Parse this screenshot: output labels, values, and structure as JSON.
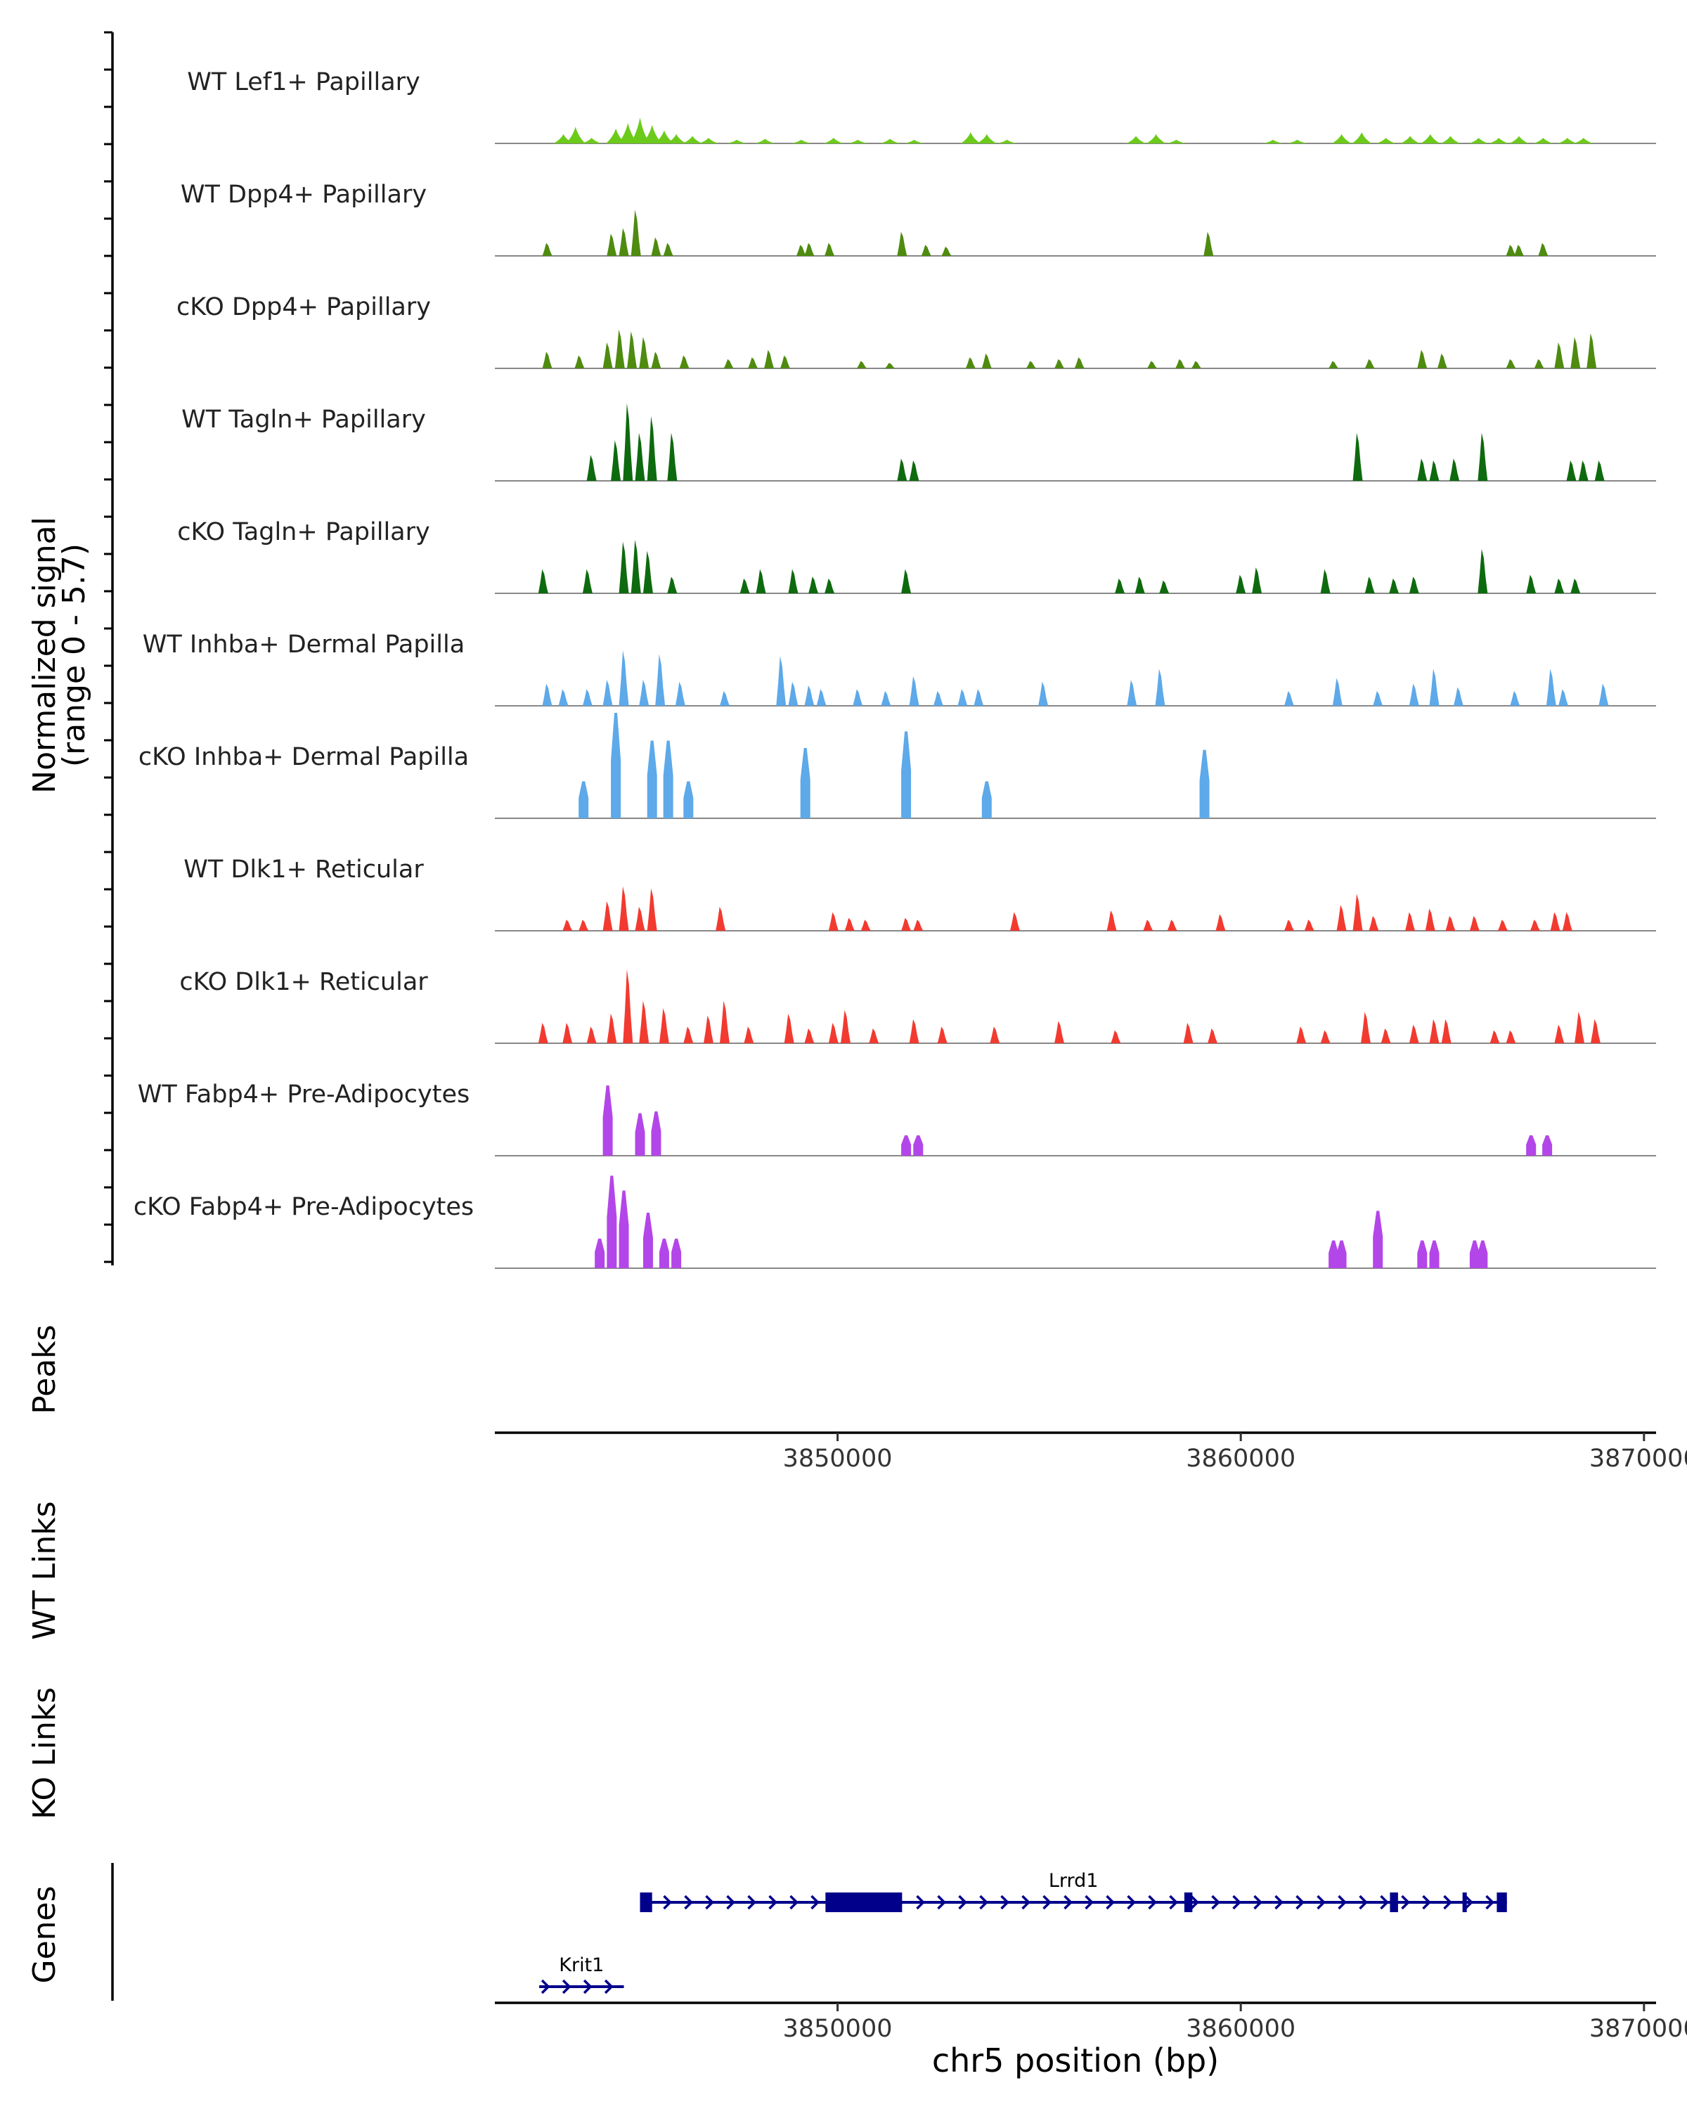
{
  "chart_data": {
    "type": "area",
    "title": "",
    "xlabel": "chr5 position (bp)",
    "xlim": [
      3841500,
      3870300
    ],
    "x_ticks": [
      3850000,
      3860000,
      3870000
    ],
    "x_tick_labels": [
      "3850000",
      "3860000",
      "3870000"
    ],
    "y_axis": {
      "label_line1": "Normalized signal",
      "label_line2": "(range 0 - 5.7)",
      "range": [
        0,
        5.7
      ]
    },
    "panel_labels": {
      "peaks": "Peaks",
      "wt_links": "WT Links",
      "ko_links": "KO Links",
      "genes": "Genes"
    },
    "series": [
      {
        "name": "WT Lef1+ Papillary",
        "color": "#6CCB1A",
        "style": "smooth",
        "peaks": [
          [
            3843200,
            0.5
          ],
          [
            3843500,
            0.9
          ],
          [
            3843900,
            0.3
          ],
          [
            3844500,
            0.8
          ],
          [
            3844800,
            1.1
          ],
          [
            3845100,
            1.4
          ],
          [
            3845400,
            1.0
          ],
          [
            3845700,
            0.7
          ],
          [
            3846000,
            0.5
          ],
          [
            3846400,
            0.4
          ],
          [
            3846800,
            0.3
          ],
          [
            3847500,
            0.2
          ],
          [
            3848200,
            0.25
          ],
          [
            3849100,
            0.2
          ],
          [
            3849900,
            0.3
          ],
          [
            3850500,
            0.2
          ],
          [
            3851300,
            0.25
          ],
          [
            3851900,
            0.2
          ],
          [
            3853300,
            0.6
          ],
          [
            3853700,
            0.5
          ],
          [
            3854200,
            0.2
          ],
          [
            3857400,
            0.4
          ],
          [
            3857900,
            0.5
          ],
          [
            3858400,
            0.2
          ],
          [
            3860800,
            0.2
          ],
          [
            3861400,
            0.2
          ],
          [
            3862500,
            0.5
          ],
          [
            3863000,
            0.6
          ],
          [
            3863600,
            0.3
          ],
          [
            3864200,
            0.4
          ],
          [
            3864700,
            0.5
          ],
          [
            3865200,
            0.4
          ],
          [
            3865900,
            0.3
          ],
          [
            3866400,
            0.3
          ],
          [
            3866900,
            0.4
          ],
          [
            3867500,
            0.3
          ],
          [
            3868100,
            0.3
          ],
          [
            3868500,
            0.3
          ]
        ]
      },
      {
        "name": "WT Dpp4+ Papillary",
        "color": "#4E8B0F",
        "style": "spiky",
        "peaks": [
          [
            3842800,
            0.7
          ],
          [
            3844400,
            1.2
          ],
          [
            3844700,
            1.5
          ],
          [
            3845000,
            2.5
          ],
          [
            3845500,
            1.0
          ],
          [
            3845800,
            0.7
          ],
          [
            3849100,
            0.6
          ],
          [
            3849300,
            0.7
          ],
          [
            3849800,
            0.7
          ],
          [
            3851600,
            1.3
          ],
          [
            3852200,
            0.6
          ],
          [
            3852700,
            0.5
          ],
          [
            3859200,
            1.3
          ],
          [
            3866700,
            0.6
          ],
          [
            3866900,
            0.6
          ],
          [
            3867500,
            0.7
          ]
        ]
      },
      {
        "name": "cKO Dpp4+ Papillary",
        "color": "#4E8B0F",
        "style": "spiky",
        "peaks": [
          [
            3842800,
            0.9
          ],
          [
            3843600,
            0.7
          ],
          [
            3844300,
            1.4
          ],
          [
            3844600,
            2.1
          ],
          [
            3844900,
            2.0
          ],
          [
            3845200,
            1.7
          ],
          [
            3845500,
            0.9
          ],
          [
            3846200,
            0.7
          ],
          [
            3847300,
            0.5
          ],
          [
            3847900,
            0.6
          ],
          [
            3848300,
            1.0
          ],
          [
            3848700,
            0.7
          ],
          [
            3850600,
            0.4
          ],
          [
            3851300,
            0.3
          ],
          [
            3853300,
            0.6
          ],
          [
            3853700,
            0.8
          ],
          [
            3854800,
            0.4
          ],
          [
            3855500,
            0.5
          ],
          [
            3856000,
            0.6
          ],
          [
            3857800,
            0.4
          ],
          [
            3858500,
            0.5
          ],
          [
            3858900,
            0.4
          ],
          [
            3862300,
            0.4
          ],
          [
            3863200,
            0.5
          ],
          [
            3864500,
            1.0
          ],
          [
            3865000,
            0.8
          ],
          [
            3866700,
            0.5
          ],
          [
            3867400,
            0.5
          ],
          [
            3867900,
            1.4
          ],
          [
            3868300,
            1.7
          ],
          [
            3868700,
            1.9
          ]
        ]
      },
      {
        "name": "WT Tagln+ Papillary",
        "color": "#0E6A0E",
        "style": "spiky",
        "peaks": [
          [
            3843900,
            1.4
          ],
          [
            3844500,
            2.2
          ],
          [
            3844800,
            4.2
          ],
          [
            3845100,
            2.6
          ],
          [
            3845400,
            3.5
          ],
          [
            3845900,
            2.6
          ],
          [
            3851600,
            1.2
          ],
          [
            3851900,
            1.1
          ],
          [
            3862900,
            2.6
          ],
          [
            3864500,
            1.2
          ],
          [
            3864800,
            1.1
          ],
          [
            3865300,
            1.2
          ],
          [
            3866000,
            2.6
          ],
          [
            3868200,
            1.1
          ],
          [
            3868500,
            1.1
          ],
          [
            3868900,
            1.1
          ]
        ]
      },
      {
        "name": "cKO Tagln+ Papillary",
        "color": "#0E6A0E",
        "style": "spiky",
        "peaks": [
          [
            3842700,
            1.3
          ],
          [
            3843800,
            1.3
          ],
          [
            3844700,
            2.8
          ],
          [
            3845000,
            2.9
          ],
          [
            3845300,
            2.3
          ],
          [
            3845900,
            0.9
          ],
          [
            3847700,
            0.8
          ],
          [
            3848100,
            1.3
          ],
          [
            3848900,
            1.3
          ],
          [
            3849400,
            0.9
          ],
          [
            3849800,
            0.8
          ],
          [
            3851700,
            1.3
          ],
          [
            3857000,
            0.8
          ],
          [
            3857500,
            0.9
          ],
          [
            3858100,
            0.7
          ],
          [
            3860000,
            1.0
          ],
          [
            3860400,
            1.4
          ],
          [
            3862100,
            1.3
          ],
          [
            3863200,
            0.9
          ],
          [
            3863800,
            0.8
          ],
          [
            3864300,
            0.9
          ],
          [
            3866000,
            2.4
          ],
          [
            3867200,
            1.0
          ],
          [
            3867900,
            0.8
          ],
          [
            3868300,
            0.8
          ]
        ]
      },
      {
        "name": "WT Inhba+ Dermal Papilla",
        "color": "#5DA9E9",
        "style": "spiky",
        "peaks": [
          [
            3842800,
            1.2
          ],
          [
            3843200,
            0.9
          ],
          [
            3843800,
            0.9
          ],
          [
            3844300,
            1.4
          ],
          [
            3844700,
            3.0
          ],
          [
            3845200,
            1.4
          ],
          [
            3845600,
            2.8
          ],
          [
            3846100,
            1.3
          ],
          [
            3847200,
            0.8
          ],
          [
            3848600,
            2.7
          ],
          [
            3848900,
            1.3
          ],
          [
            3849300,
            1.1
          ],
          [
            3849600,
            0.9
          ],
          [
            3850500,
            0.9
          ],
          [
            3851200,
            0.8
          ],
          [
            3851900,
            1.6
          ],
          [
            3852500,
            0.8
          ],
          [
            3853100,
            0.9
          ],
          [
            3853500,
            0.9
          ],
          [
            3855100,
            1.3
          ],
          [
            3857300,
            1.4
          ],
          [
            3858000,
            2.0
          ],
          [
            3861200,
            0.8
          ],
          [
            3862400,
            1.5
          ],
          [
            3863400,
            0.8
          ],
          [
            3864300,
            1.2
          ],
          [
            3864800,
            2.0
          ],
          [
            3865400,
            1.0
          ],
          [
            3866800,
            0.8
          ],
          [
            3867700,
            2.0
          ],
          [
            3868000,
            0.9
          ],
          [
            3869000,
            1.2
          ]
        ]
      },
      {
        "name": "cKO Inhba+ Dermal Papilla",
        "color": "#5DA9E9",
        "style": "block",
        "peaks": [
          [
            3843700,
            2.0
          ],
          [
            3844500,
            5.7
          ],
          [
            3845400,
            4.2
          ],
          [
            3845800,
            4.2
          ],
          [
            3846300,
            2.0
          ],
          [
            3849200,
            3.8
          ],
          [
            3851700,
            4.7
          ],
          [
            3853700,
            2.0
          ],
          [
            3859100,
            3.7
          ]
        ]
      },
      {
        "name": "WT Dlk1+ Reticular",
        "color": "#F23A30",
        "style": "spiky",
        "peaks": [
          [
            3843300,
            0.6
          ],
          [
            3843700,
            0.6
          ],
          [
            3844300,
            1.6
          ],
          [
            3844700,
            2.4
          ],
          [
            3845100,
            1.3
          ],
          [
            3845400,
            2.3
          ],
          [
            3847100,
            1.3
          ],
          [
            3849900,
            1.0
          ],
          [
            3850300,
            0.7
          ],
          [
            3850700,
            0.6
          ],
          [
            3851700,
            0.7
          ],
          [
            3852000,
            0.6
          ],
          [
            3854400,
            1.0
          ],
          [
            3856800,
            1.1
          ],
          [
            3857700,
            0.6
          ],
          [
            3858300,
            0.6
          ],
          [
            3859500,
            0.9
          ],
          [
            3861200,
            0.6
          ],
          [
            3861700,
            0.6
          ],
          [
            3862500,
            1.4
          ],
          [
            3862900,
            2.0
          ],
          [
            3863300,
            0.8
          ],
          [
            3864200,
            1.0
          ],
          [
            3864700,
            1.2
          ],
          [
            3865200,
            0.8
          ],
          [
            3865800,
            0.8
          ],
          [
            3866500,
            0.6
          ],
          [
            3867300,
            0.6
          ],
          [
            3867800,
            1.0
          ],
          [
            3868100,
            1.0
          ]
        ]
      },
      {
        "name": "cKO Dlk1+ Reticular",
        "color": "#F23A30",
        "style": "spiky",
        "peaks": [
          [
            3842700,
            1.1
          ],
          [
            3843300,
            1.1
          ],
          [
            3843900,
            0.9
          ],
          [
            3844400,
            1.6
          ],
          [
            3844800,
            4.0
          ],
          [
            3845200,
            2.3
          ],
          [
            3845700,
            1.9
          ],
          [
            3846300,
            0.9
          ],
          [
            3846800,
            1.5
          ],
          [
            3847200,
            2.3
          ],
          [
            3847800,
            0.9
          ],
          [
            3848800,
            1.6
          ],
          [
            3849300,
            0.8
          ],
          [
            3849900,
            1.1
          ],
          [
            3850200,
            1.8
          ],
          [
            3850900,
            0.8
          ],
          [
            3851900,
            1.3
          ],
          [
            3852600,
            0.9
          ],
          [
            3853900,
            0.9
          ],
          [
            3855500,
            1.2
          ],
          [
            3856900,
            0.7
          ],
          [
            3858700,
            1.1
          ],
          [
            3859300,
            0.8
          ],
          [
            3861500,
            0.9
          ],
          [
            3862100,
            0.7
          ],
          [
            3863100,
            1.7
          ],
          [
            3863600,
            0.8
          ],
          [
            3864300,
            1.0
          ],
          [
            3864800,
            1.3
          ],
          [
            3865100,
            1.3
          ],
          [
            3866300,
            0.7
          ],
          [
            3866700,
            0.7
          ],
          [
            3867900,
            1.0
          ],
          [
            3868400,
            1.7
          ],
          [
            3868800,
            1.3
          ]
        ]
      },
      {
        "name": "WT Fabp4+ Pre-Adipocytes",
        "color": "#B346E8",
        "style": "block",
        "peaks": [
          [
            3844300,
            3.8
          ],
          [
            3845100,
            2.3
          ],
          [
            3845500,
            2.4
          ],
          [
            3851700,
            1.1
          ],
          [
            3852000,
            1.1
          ],
          [
            3867200,
            1.1
          ],
          [
            3867600,
            1.1
          ]
        ]
      },
      {
        "name": "cKO Fabp4+ Pre-Adipocytes",
        "color": "#B346E8",
        "style": "block",
        "peaks": [
          [
            3844100,
            1.6
          ],
          [
            3844400,
            5.0
          ],
          [
            3844700,
            4.2
          ],
          [
            3845300,
            3.0
          ],
          [
            3845700,
            1.6
          ],
          [
            3846000,
            1.6
          ],
          [
            3862300,
            1.5
          ],
          [
            3862500,
            1.5
          ],
          [
            3863400,
            3.1
          ],
          [
            3864500,
            1.5
          ],
          [
            3864800,
            1.5
          ],
          [
            3865800,
            1.5
          ],
          [
            3866000,
            1.5
          ]
        ]
      }
    ],
    "genes": [
      {
        "name": "Lrrd1",
        "start": 3845100,
        "end": 3866600,
        "strand": "+",
        "row": 0,
        "exons": [
          [
            3845100,
            3845400
          ],
          [
            3849700,
            3851600
          ],
          [
            3858600,
            3858800
          ],
          [
            3863700,
            3863900
          ],
          [
            3865500,
            3865600
          ],
          [
            3866350,
            3866600
          ]
        ]
      },
      {
        "name": "Krit1",
        "start": 3842600,
        "end": 3844700,
        "strand": "+",
        "row": 1,
        "exons": []
      }
    ]
  }
}
